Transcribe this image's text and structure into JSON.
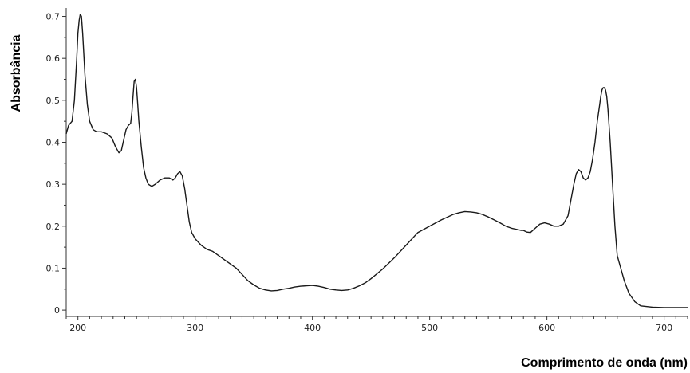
{
  "chart_data": {
    "type": "line",
    "title": "",
    "xlabel": "Comprimento de onda (nm)",
    "ylabel": "Absorbância",
    "xlim": [
      190,
      720
    ],
    "ylim": [
      -0.015,
      0.72
    ],
    "xticks": [
      200,
      300,
      400,
      500,
      600,
      700
    ],
    "yticks": [
      0,
      0.1,
      0.2,
      0.3,
      0.4,
      0.5,
      0.6,
      0.7
    ],
    "ytick_labels": [
      "0",
      "0.1",
      "0.2",
      "0.3",
      "0.4",
      "0.5",
      "0.6",
      "0.7"
    ],
    "grid": false,
    "line_color": "#1a1a1a",
    "series": [
      {
        "x": [
          190,
          192,
          195,
          197,
          199,
          200,
          201,
          202,
          203,
          204,
          206,
          208,
          210,
          213,
          216,
          220,
          225,
          229,
          232,
          235,
          237,
          239,
          241,
          243,
          245,
          246,
          247,
          248,
          249,
          250,
          251,
          252,
          254,
          256,
          258,
          260,
          263,
          266,
          270,
          274,
          278,
          281,
          283,
          285,
          287,
          289,
          291,
          293,
          295,
          297,
          300,
          305,
          310,
          315,
          320,
          325,
          330,
          335,
          340,
          345,
          350,
          355,
          360,
          365,
          370,
          375,
          380,
          385,
          390,
          395,
          400,
          405,
          410,
          415,
          420,
          425,
          430,
          435,
          440,
          445,
          450,
          460,
          470,
          480,
          490,
          500,
          510,
          520,
          525,
          530,
          535,
          540,
          545,
          550,
          555,
          560,
          565,
          570,
          575,
          578,
          580,
          583,
          586,
          590,
          594,
          598,
          602,
          606,
          610,
          614,
          618,
          621,
          623,
          625,
          627,
          629,
          631,
          633,
          635,
          637,
          639,
          641,
          643,
          645,
          646,
          647,
          648,
          649,
          650,
          651,
          652,
          654,
          656,
          658,
          660,
          663,
          666,
          670,
          675,
          680,
          690,
          700,
          710,
          720
        ],
        "y": [
          0.42,
          0.44,
          0.45,
          0.5,
          0.6,
          0.66,
          0.69,
          0.705,
          0.7,
          0.66,
          0.56,
          0.49,
          0.45,
          0.43,
          0.425,
          0.425,
          0.42,
          0.41,
          0.39,
          0.375,
          0.38,
          0.405,
          0.43,
          0.44,
          0.445,
          0.47,
          0.51,
          0.545,
          0.55,
          0.53,
          0.49,
          0.45,
          0.39,
          0.34,
          0.315,
          0.3,
          0.295,
          0.3,
          0.31,
          0.315,
          0.315,
          0.31,
          0.315,
          0.325,
          0.33,
          0.32,
          0.29,
          0.25,
          0.21,
          0.185,
          0.17,
          0.155,
          0.145,
          0.14,
          0.13,
          0.12,
          0.11,
          0.1,
          0.085,
          0.07,
          0.06,
          0.052,
          0.048,
          0.046,
          0.047,
          0.05,
          0.052,
          0.055,
          0.057,
          0.058,
          0.059,
          0.057,
          0.054,
          0.05,
          0.048,
          0.047,
          0.048,
          0.052,
          0.058,
          0.065,
          0.075,
          0.098,
          0.125,
          0.155,
          0.185,
          0.2,
          0.215,
          0.228,
          0.232,
          0.235,
          0.234,
          0.232,
          0.228,
          0.222,
          0.215,
          0.208,
          0.2,
          0.195,
          0.192,
          0.19,
          0.19,
          0.186,
          0.185,
          0.195,
          0.205,
          0.208,
          0.205,
          0.2,
          0.2,
          0.205,
          0.225,
          0.27,
          0.3,
          0.325,
          0.335,
          0.33,
          0.315,
          0.31,
          0.315,
          0.33,
          0.36,
          0.4,
          0.45,
          0.49,
          0.51,
          0.525,
          0.53,
          0.53,
          0.525,
          0.51,
          0.48,
          0.4,
          0.3,
          0.2,
          0.13,
          0.1,
          0.07,
          0.04,
          0.02,
          0.01,
          0.007,
          0.006,
          0.006,
          0.006
        ]
      }
    ]
  }
}
